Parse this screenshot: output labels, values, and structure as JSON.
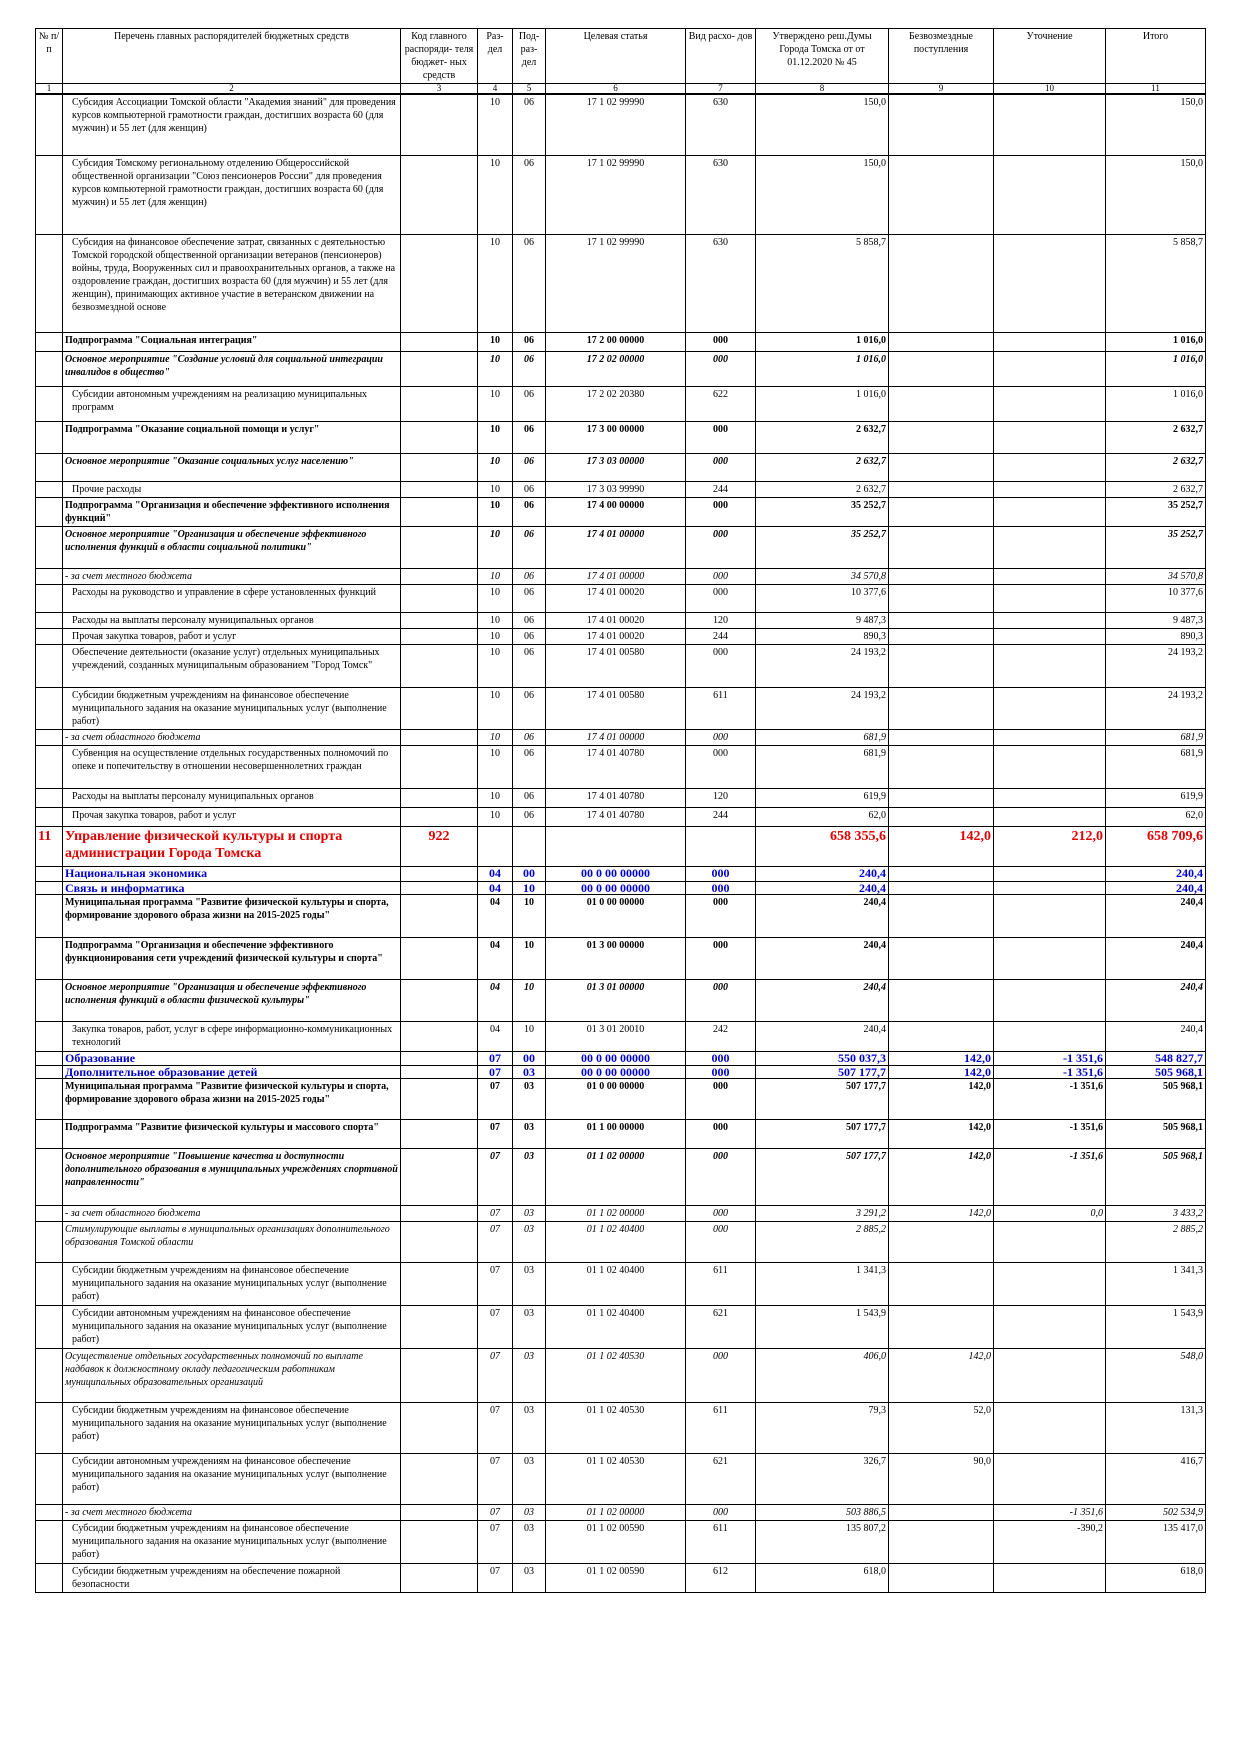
{
  "header": [
    "№ п/п",
    "Перечень главных распорядителей бюджетных средств",
    "Код главного распоряди- теля бюджет- ных средств",
    "Раз- дел",
    "Под- раз- дел",
    "Целевая статья",
    "Вид расхо- дов",
    "Утверждено реш.Думы Города Томска от от 01.12.2020 № 45",
    "Безвозмездные поступления",
    "Уточнение",
    "Итого"
  ],
  "column_numbers": [
    1,
    2,
    3,
    4,
    5,
    6,
    7,
    8,
    9,
    10,
    11
  ],
  "rows": [
    {
      "name": "Субсидия Ассоциации Томской области \"Академия знаний\" для проведения курсов компьютерной грамотности граждан, достигших возраста 60 (для мужчин) и 55 лет (для женщин)",
      "r": "10",
      "p": "06",
      "cs": "17 1 02 99990",
      "vr": "630",
      "utv": "150,0",
      "it": "150,0"
    },
    {
      "name": "Субсидия Томскому региональному отделению Общероссийской общественной организации \"Союз пенсионеров России\" для проведения курсов компьютерной грамотности граждан, достигших возраста 60 (для мужчин) и 55 лет (для женщин)",
      "r": "10",
      "p": "06",
      "cs": "17 1 02 99990",
      "vr": "630",
      "utv": "150,0",
      "it": "150,0"
    },
    {
      "name": "Субсидия на финансовое обеспечение затрат, связанных с деятельностью Томской городской общественной организации ветеранов (пенсионеров) войны, труда, Вооруженных сил и правоохранительных органов, а также на оздоровление граждан, достигших возраста 60 (для мужчин) и 55 лет (для женщин), принимающих активное участие в ветеранском движении на безвозмездной основе",
      "r": "10",
      "p": "06",
      "cs": "17 1 02 99990",
      "vr": "630",
      "utv": "5 858,7",
      "it": "5 858,7"
    },
    {
      "name": "Подпрограмма \"Социальная интеграция\"",
      "r": "10",
      "p": "06",
      "cs": "17 2 00 00000",
      "vr": "000",
      "utv": "1 016,0",
      "it": "1 016,0"
    },
    {
      "name": "Основное мероприятие \"Создание условий для социальной интеграции инвалидов в общество\"",
      "r": "10",
      "p": "06",
      "cs": "17 2 02 00000",
      "vr": "000",
      "utv": "1 016,0",
      "it": "1 016,0"
    },
    {
      "name": "Субсидии автономным учреждениям на реализацию муниципальных программ",
      "r": "10",
      "p": "06",
      "cs": "17 2 02 20380",
      "vr": "622",
      "utv": "1 016,0",
      "it": "1 016,0"
    },
    {
      "name": "Подпрограмма \"Оказание социальной помощи и услуг\"",
      "r": "10",
      "p": "06",
      "cs": "17 3 00 00000",
      "vr": "000",
      "utv": "2 632,7",
      "it": "2 632,7"
    },
    {
      "name": "Основное мероприятие \"Оказание социальных услуг населению\"",
      "r": "10",
      "p": "06",
      "cs": "17 3 03 00000",
      "vr": "000",
      "utv": "2 632,7",
      "it": "2 632,7"
    },
    {
      "name": "Прочие расходы",
      "r": "10",
      "p": "06",
      "cs": "17 3 03 99990",
      "vr": "244",
      "utv": "2 632,7",
      "it": "2 632,7"
    },
    {
      "name": "Подпрограмма \"Организация и обеспечение эффективного исполнения функций\"",
      "r": "10",
      "p": "06",
      "cs": "17 4 00 00000",
      "vr": "000",
      "utv": "35 252,7",
      "it": "35 252,7"
    },
    {
      "name": "Основное мероприятие \"Организация и обеспечение эффективного исполнения функций в области социальной политики\"",
      "r": "10",
      "p": "06",
      "cs": "17 4 01 00000",
      "vr": "000",
      "utv": "35 252,7",
      "it": "35 252,7"
    },
    {
      "name": "- за счет местного бюджета",
      "r": "10",
      "p": "06",
      "cs": "17 4 01 00000",
      "vr": "000",
      "utv": "34 570,8",
      "it": "34 570,8"
    },
    {
      "name": "Расходы на руководство и управление в сфере установленных функций",
      "r": "10",
      "p": "06",
      "cs": "17 4 01 00020",
      "vr": "000",
      "utv": "10 377,6",
      "it": "10 377,6"
    },
    {
      "name": "Расходы на выплаты персоналу муниципальных органов",
      "r": "10",
      "p": "06",
      "cs": "17 4 01 00020",
      "vr": "120",
      "utv": "9 487,3",
      "it": "9 487,3"
    },
    {
      "name": "Прочая закупка товаров, работ и услуг",
      "r": "10",
      "p": "06",
      "cs": "17 4 01 00020",
      "vr": "244",
      "utv": "890,3",
      "it": "890,3"
    },
    {
      "name": "Обеспечение деятельности (оказание услуг) отдельных муниципальных учреждений, созданных муниципальным образованием \"Город Томск\"",
      "r": "10",
      "p": "06",
      "cs": "17 4 01 00580",
      "vr": "000",
      "utv": "24 193,2",
      "it": "24 193,2"
    },
    {
      "name": "Субсидии бюджетным учреждениям на финансовое обеспечение муниципального задания на оказание муниципальных услуг (выполнение работ)",
      "r": "10",
      "p": "06",
      "cs": "17 4 01 00580",
      "vr": "611",
      "utv": "24 193,2",
      "it": "24 193,2"
    },
    {
      "name": "- за счет областного бюджета",
      "r": "10",
      "p": "06",
      "cs": "17 4 01 00000",
      "vr": "000",
      "utv": "681,9",
      "it": "681,9"
    },
    {
      "name": "Субвенция на осуществление отдельных государственных полномочий по опеке и попечительству в отношении несовершеннолетних граждан",
      "r": "10",
      "p": "06",
      "cs": "17 4 01 40780",
      "vr": "000",
      "utv": "681,9",
      "it": "681,9"
    },
    {
      "name": "Расходы на выплаты персоналу муниципальных органов",
      "r": "10",
      "p": "06",
      "cs": "17 4 01 40780",
      "vr": "120",
      "utv": "619,9",
      "it": "619,9"
    },
    {
      "name": "Прочая закупка товаров, работ и услуг",
      "r": "10",
      "p": "06",
      "cs": "17 4 01 40780",
      "vr": "244",
      "utv": "62,0",
      "it": "62,0"
    },
    {
      "n": "11",
      "name": "Управление физической культуры и спорта администрации Города Томска",
      "code": "922",
      "utv": "658 355,6",
      "bez": "142,0",
      "ut": "212,0",
      "it": "658 709,6"
    },
    {
      "name": "Национальная экономика",
      "r": "04",
      "p": "00",
      "cs": "00 0 00 00000",
      "vr": "000",
      "utv": "240,4",
      "it": "240,4"
    },
    {
      "name": "Связь и информатика",
      "r": "04",
      "p": "10",
      "cs": "00 0 00 00000",
      "vr": "000",
      "utv": "240,4",
      "it": "240,4"
    },
    {
      "name": "Муниципальная программа \"Развитие физической культуры и спорта, формирование здорового образа жизни на 2015-2025 годы\"",
      "r": "04",
      "p": "10",
      "cs": "01 0 00 00000",
      "vr": "000",
      "utv": "240,4",
      "it": "240,4"
    },
    {
      "name": "Подпрограмма \"Организация и обеспечение эффективного функционирования сети учреждений физической культуры и спорта\"",
      "r": "04",
      "p": "10",
      "cs": "01 3 00 00000",
      "vr": "000",
      "utv": "240,4",
      "it": "240,4"
    },
    {
      "name": "Основное мероприятие \"Организация и обеспечение эффективного исполнения функций в области физической культуры\"",
      "r": "04",
      "p": "10",
      "cs": "01 3 01 00000",
      "vr": "000",
      "utv": "240,4",
      "it": "240,4"
    },
    {
      "name": "Закупка товаров, работ, услуг в сфере информационно-коммуникационных технологий",
      "r": "04",
      "p": "10",
      "cs": "01 3 01 20010",
      "vr": "242",
      "utv": "240,4",
      "it": "240,4"
    },
    {
      "name": "Образование",
      "r": "07",
      "p": "00",
      "cs": "00 0 00 00000",
      "vr": "000",
      "utv": "550 037,3",
      "bez": "142,0",
      "ut": "-1 351,6",
      "it": "548 827,7"
    },
    {
      "name": "Дополнительное образование детей",
      "r": "07",
      "p": "03",
      "cs": "00 0 00 00000",
      "vr": "000",
      "utv": "507 177,7",
      "bez": "142,0",
      "ut": "-1 351,6",
      "it": "505 968,1"
    },
    {
      "name": "Муниципальная программа \"Развитие физической культуры и спорта, формирование здорового образа жизни на 2015-2025 годы\"",
      "r": "07",
      "p": "03",
      "cs": "01 0 00 00000",
      "vr": "000",
      "utv": "507 177,7",
      "bez": "142,0",
      "ut": "-1 351,6",
      "it": "505 968,1"
    },
    {
      "name": "Подпрограмма \"Развитие физической культуры и массового спорта\"",
      "r": "07",
      "p": "03",
      "cs": "01 1 00 00000",
      "vr": "000",
      "utv": "507 177,7",
      "bez": "142,0",
      "ut": "-1 351,6",
      "it": "505 968,1"
    },
    {
      "name": "Основное мероприятие \"Повышение качества и доступности дополнительного образования в муниципальных учреждениях спортивной направленности\"",
      "r": "07",
      "p": "03",
      "cs": "01 1 02 00000",
      "vr": "000",
      "utv": "507 177,7",
      "bez": "142,0",
      "ut": "-1 351,6",
      "it": "505 968,1"
    },
    {
      "name": "- за счет областного бюджета",
      "r": "07",
      "p": "03",
      "cs": "01 1 02 00000",
      "vr": "000",
      "utv": "3 291,2",
      "bez": "142,0",
      "ut": "0,0",
      "it": "3 433,2"
    },
    {
      "name": "Стимулирующие выплаты в муниципальных организациях дополнительного образования Томской области",
      "r": "07",
      "p": "03",
      "cs": "01 1 02 40400",
      "vr": "000",
      "utv": "2 885,2",
      "it": "2 885,2"
    },
    {
      "name": "Субсидии бюджетным учреждениям на финансовое обеспечение муниципального задания на оказание муниципальных услуг (выполнение работ)",
      "r": "07",
      "p": "03",
      "cs": "01 1 02 40400",
      "vr": "611",
      "utv": "1 341,3",
      "it": "1 341,3"
    },
    {
      "name": "Субсидии автономным учреждениям на финансовое обеспечение муниципального задания на оказание муниципальных услуг (выполнение работ)",
      "r": "07",
      "p": "03",
      "cs": "01 1 02 40400",
      "vr": "621",
      "utv": "1 543,9",
      "it": "1 543,9"
    },
    {
      "name": "Осуществление отдельных государственных полномочий по выплате надбавок к должностному окладу педагогическим работникам муниципальных образовательных организаций",
      "r": "07",
      "p": "03",
      "cs": "01 1 02 40530",
      "vr": "000",
      "utv": "406,0",
      "bez": "142,0",
      "it": "548,0"
    },
    {
      "name": "Субсидии бюджетным учреждениям на финансовое обеспечение муниципального задания на оказание муниципальных услуг (выполнение работ)",
      "r": "07",
      "p": "03",
      "cs": "01 1 02 40530",
      "vr": "611",
      "utv": "79,3",
      "bez": "52,0",
      "it": "131,3"
    },
    {
      "name": "Субсидии автономным учреждениям на финансовое обеспечение муниципального задания на оказание муниципальных услуг (выполнение работ)",
      "r": "07",
      "p": "03",
      "cs": "01 1 02 40530",
      "vr": "621",
      "utv": "326,7",
      "bez": "90,0",
      "it": "416,7"
    },
    {
      "name": "- за счет местного бюджета",
      "r": "07",
      "p": "03",
      "cs": "01 1 02 00000",
      "vr": "000",
      "utv": "503 886,5",
      "ut": "-1 351,6",
      "it": "502 534,9"
    },
    {
      "name": "Субсидии бюджетным учреждениям на финансовое обеспечение муниципального задания на оказание муниципальных услуг (выполнение работ)",
      "r": "07",
      "p": "03",
      "cs": "01 1 02 00590",
      "vr": "611",
      "utv": "135 807,2",
      "ut": "-390,2",
      "it": "135 417,0"
    },
    {
      "name": "Субсидии бюджетным учреждениям на обеспечение пожарной безопасности",
      "r": "07",
      "p": "03",
      "cs": "01 1 02 00590",
      "vr": "612",
      "utv": "618,0",
      "it": "618,0"
    }
  ]
}
